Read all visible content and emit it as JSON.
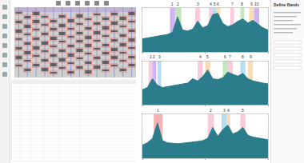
{
  "panel": {
    "title": "Define Bands"
  },
  "gel": {
    "lanes": 14
  },
  "chart_data": [
    {
      "type": "line",
      "color": "#2b7d8c",
      "grid": false,
      "tick_labels": false,
      "x": [
        0,
        4,
        8,
        12,
        16,
        20,
        24,
        28,
        32,
        36,
        40,
        44,
        48,
        52,
        56,
        60,
        64,
        68,
        72,
        76,
        80,
        84,
        88,
        92,
        96,
        100
      ],
      "values": [
        30,
        32,
        34,
        36,
        38,
        40,
        45,
        80,
        50,
        48,
        52,
        70,
        55,
        60,
        85,
        88,
        65,
        58,
        62,
        70,
        75,
        66,
        72,
        64,
        55,
        50
      ],
      "xlim": [
        0,
        100
      ],
      "ylim": [
        0,
        100
      ],
      "xticks": [
        0,
        50,
        100
      ],
      "yticks": [
        0,
        50,
        100
      ],
      "bands": [
        {
          "label": "1",
          "start": 22,
          "end": 26,
          "color": "#c9a6f0"
        },
        {
          "label": "2",
          "start": 26,
          "end": 31,
          "color": "#b8e2b0"
        },
        {
          "label": "3",
          "start": 42,
          "end": 46,
          "color": "#f6c1d6"
        },
        {
          "label": "4",
          "start": 53,
          "end": 56,
          "color": "#f6c1d6"
        },
        {
          "label": "5",
          "start": 56,
          "end": 59,
          "color": "#a8d8f0"
        },
        {
          "label": "6",
          "start": 59,
          "end": 62,
          "color": "#f7d6a8"
        },
        {
          "label": "7",
          "start": 70,
          "end": 73,
          "color": "#f6c1d6"
        },
        {
          "label": "8",
          "start": 78,
          "end": 81,
          "color": "#b8e2b0"
        },
        {
          "label": "9",
          "start": 85,
          "end": 89,
          "color": "#f7d6a8"
        },
        {
          "label": "10",
          "start": 89,
          "end": 93,
          "color": "#c9a6f0"
        }
      ]
    },
    {
      "type": "line",
      "color": "#2b7d8c",
      "grid": false,
      "tick_labels": false,
      "x": [
        0,
        4,
        8,
        12,
        16,
        20,
        24,
        28,
        32,
        36,
        40,
        44,
        48,
        52,
        56,
        60,
        64,
        68,
        72,
        76,
        80,
        84,
        88,
        92,
        96,
        100
      ],
      "values": [
        35,
        40,
        60,
        45,
        40,
        42,
        44,
        46,
        48,
        50,
        60,
        55,
        65,
        80,
        60,
        58,
        62,
        75,
        70,
        66,
        72,
        60,
        55,
        52,
        50,
        48
      ],
      "xlim": [
        0,
        100
      ],
      "ylim": [
        0,
        100
      ],
      "xticks": [
        0,
        50,
        100
      ],
      "yticks": [
        0,
        50,
        100
      ],
      "bands": [
        {
          "label": "1",
          "start": 5,
          "end": 8,
          "color": "#f6c1d6"
        },
        {
          "label": "2",
          "start": 8,
          "end": 11,
          "color": "#c9a6f0"
        },
        {
          "label": "3",
          "start": 12,
          "end": 15,
          "color": "#a8d8f0"
        },
        {
          "label": "4",
          "start": 44,
          "end": 48,
          "color": "#f6c1d6"
        },
        {
          "label": "5",
          "start": 50,
          "end": 54,
          "color": "#f7d6a8"
        },
        {
          "label": "6",
          "start": 64,
          "end": 68,
          "color": "#b8e2b0"
        },
        {
          "label": "7",
          "start": 68,
          "end": 72,
          "color": "#f6c1d6"
        },
        {
          "label": "8",
          "start": 78,
          "end": 82,
          "color": "#a8d8f0"
        },
        {
          "label": "9",
          "start": 84,
          "end": 88,
          "color": "#f7d6a8"
        }
      ]
    },
    {
      "type": "line",
      "color": "#2b7d8c",
      "grid": false,
      "tick_labels": false,
      "x": [
        0,
        4,
        8,
        12,
        16,
        20,
        24,
        28,
        32,
        36,
        40,
        44,
        48,
        52,
        56,
        60,
        64,
        68,
        72,
        76,
        80,
        84,
        88,
        92,
        96,
        100
      ],
      "values": [
        30,
        35,
        45,
        80,
        40,
        35,
        34,
        33,
        34,
        35,
        36,
        38,
        40,
        45,
        70,
        50,
        65,
        75,
        55,
        60,
        70,
        52,
        48,
        46,
        44,
        42
      ],
      "xlim": [
        0,
        100
      ],
      "ylim": [
        0,
        100
      ],
      "xticks": [
        0,
        50,
        100
      ],
      "yticks": [
        0,
        50,
        100
      ],
      "bands": [
        {
          "label": "1",
          "start": 9,
          "end": 16,
          "color": "#f4a6a6"
        },
        {
          "label": "2",
          "start": 52,
          "end": 57,
          "color": "#f6c1d6"
        },
        {
          "label": "3",
          "start": 63,
          "end": 67,
          "color": "#a8d8f0"
        },
        {
          "label": "4",
          "start": 67,
          "end": 70,
          "color": "#f7d6a8"
        },
        {
          "label": "5",
          "start": 78,
          "end": 82,
          "color": "#f6c1d6"
        }
      ]
    }
  ]
}
